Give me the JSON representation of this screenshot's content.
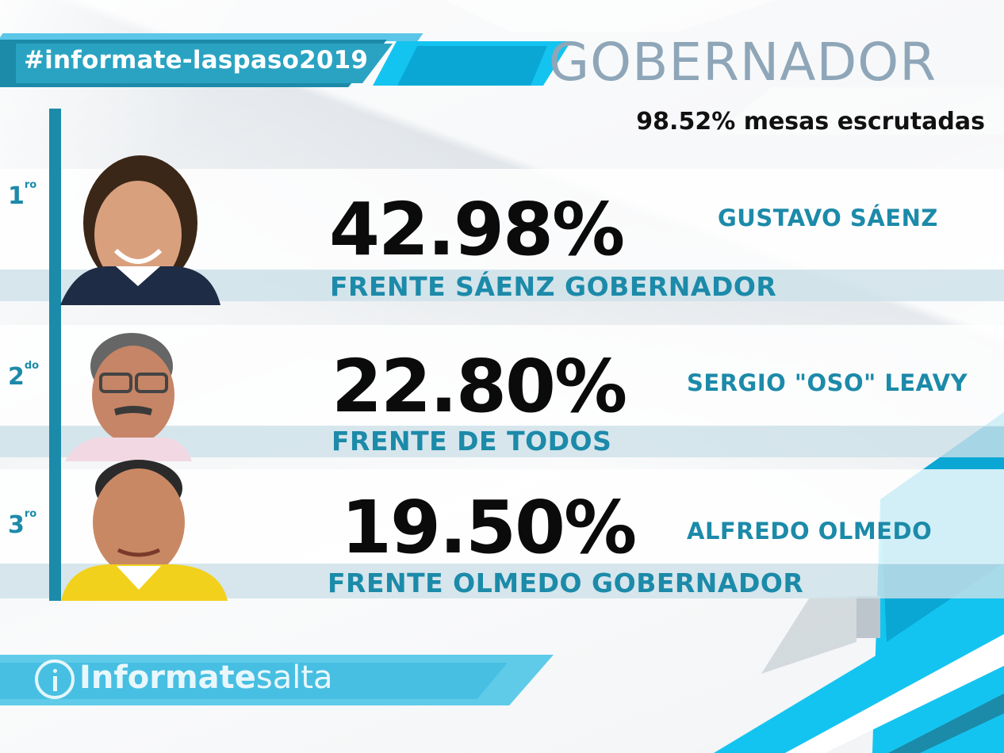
{
  "header": {
    "hashtag": "#informate-laspaso2019",
    "title": "GOBERNADOR",
    "mesas": "98.52% mesas escrutadas"
  },
  "results": [
    {
      "rank": "1",
      "rank_suffix": "ro",
      "percent": "42.98%",
      "candidate": "GUSTAVO SÁENZ",
      "party": "FRENTE SÁENZ GOBERNADOR"
    },
    {
      "rank": "2",
      "rank_suffix": "do",
      "percent": "22.80%",
      "candidate": "SERGIO \"OSO\" LEAVY",
      "party": "FRENTE DE TODOS"
    },
    {
      "rank": "3",
      "rank_suffix": "ro",
      "percent": "19.50%",
      "candidate": "ALFREDO OLMEDO",
      "party": "FRENTE OLMEDO GOBERNADOR"
    }
  ],
  "footer": {
    "brand_bold": "Informate",
    "brand_thin": "salta"
  },
  "colors": {
    "accent": "#1c8aa9",
    "cyan": "#14c4f0",
    "title_gray": "#8ea6b8"
  },
  "icons": {
    "logo": "info-circle-icon"
  }
}
